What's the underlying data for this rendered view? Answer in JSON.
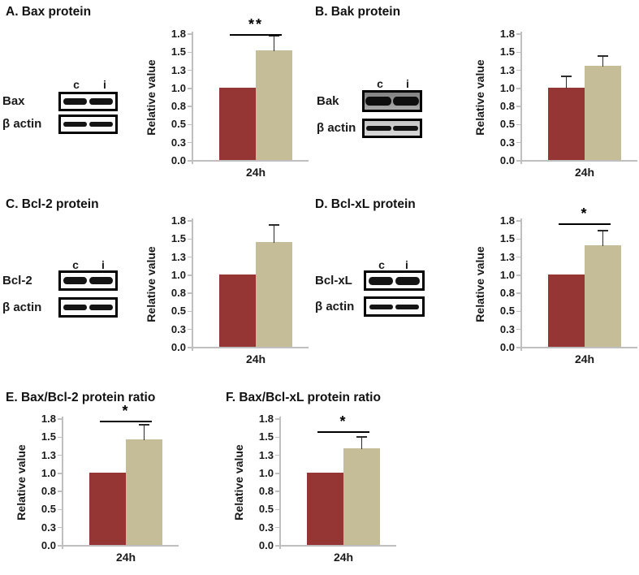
{
  "colors": {
    "control_bar": "#963634",
    "treated_bar": "#C4BD97",
    "axis_line": "#BFBFBF",
    "text": "#1A1A1A",
    "error_bar": "#2B2B2B",
    "significance": "#000000"
  },
  "panels": [
    {
      "id": "A",
      "title": "A. Bax protein",
      "blot": {
        "lane_labels": [
          "c",
          "i"
        ],
        "rows": [
          {
            "label": "Bax"
          },
          {
            "label": "β actin"
          }
        ]
      }
    },
    {
      "id": "B",
      "title": "B. Bak protein",
      "blot": {
        "lane_labels": [
          "c",
          "i"
        ],
        "rows": [
          {
            "label": "Bak"
          },
          {
            "label": "β actin"
          }
        ]
      }
    },
    {
      "id": "C",
      "title": "C. Bcl-2 protein",
      "blot": {
        "lane_labels": [
          "c",
          "i"
        ],
        "rows": [
          {
            "label": "Bcl-2"
          },
          {
            "label": "β actin"
          }
        ]
      }
    },
    {
      "id": "D",
      "title": "D. Bcl-xL protein",
      "blot": {
        "lane_labels": [
          "c",
          "i"
        ],
        "rows": [
          {
            "label": "Bcl-xL"
          },
          {
            "label": "β actin"
          }
        ]
      }
    },
    {
      "id": "E",
      "title": "E. Bax/Bcl-2 protein ratio",
      "blot": null
    },
    {
      "id": "F",
      "title": "F. Bax/Bcl-xL protein ratio",
      "blot": null
    }
  ],
  "chart_data": [
    {
      "id": "A",
      "type": "bar",
      "title": "A. Bax protein",
      "categories": [
        "24h"
      ],
      "ylabel": "Relative value",
      "ylim": [
        0,
        1.75
      ],
      "yticks": [
        "1.8",
        "1.5",
        "1.3",
        "1.0",
        "0.8",
        "0.5",
        "0.3",
        "0.0"
      ],
      "grid": false,
      "legend": "none",
      "series": [
        {
          "name": "c",
          "color": "#963634",
          "values": [
            1.0
          ],
          "error_plus": [
            0
          ]
        },
        {
          "name": "i",
          "color": "#C4BD97",
          "values": [
            1.52
          ],
          "error_plus": [
            0.21
          ]
        }
      ],
      "significance": {
        "label": "**",
        "line_y": 1.75
      }
    },
    {
      "id": "B",
      "type": "bar",
      "title": "B. Bak protein",
      "categories": [
        "24h"
      ],
      "ylabel": "Relative value",
      "ylim": [
        0,
        1.75
      ],
      "yticks": [
        "1.8",
        "1.5",
        "1.3",
        "1.0",
        "0.8",
        "0.5",
        "0.3",
        "0.0"
      ],
      "grid": false,
      "legend": "none",
      "series": [
        {
          "name": "c",
          "color": "#963634",
          "values": [
            1.0
          ],
          "error_plus": [
            0.17
          ]
        },
        {
          "name": "i",
          "color": "#C4BD97",
          "values": [
            1.3
          ],
          "error_plus": [
            0.15
          ]
        }
      ],
      "significance": null
    },
    {
      "id": "C",
      "type": "bar",
      "title": "C. Bcl-2 protein",
      "categories": [
        "24h"
      ],
      "ylabel": "Relative value",
      "ylim": [
        0,
        1.75
      ],
      "yticks": [
        "1.8",
        "1.5",
        "1.3",
        "1.0",
        "0.8",
        "0.5",
        "0.3",
        "0.0"
      ],
      "grid": false,
      "legend": "none",
      "series": [
        {
          "name": "c",
          "color": "#963634",
          "values": [
            1.0
          ],
          "error_plus": [
            0
          ]
        },
        {
          "name": "i",
          "color": "#C4BD97",
          "values": [
            1.45
          ],
          "error_plus": [
            0.24
          ]
        }
      ],
      "significance": null
    },
    {
      "id": "D",
      "type": "bar",
      "title": "D. Bcl-xL protein",
      "categories": [
        "24h"
      ],
      "ylabel": "Relative value",
      "ylim": [
        0,
        1.75
      ],
      "yticks": [
        "1.8",
        "1.5",
        "1.3",
        "1.0",
        "0.8",
        "0.5",
        "0.3",
        "0.0"
      ],
      "grid": false,
      "legend": "none",
      "series": [
        {
          "name": "c",
          "color": "#963634",
          "values": [
            1.0
          ],
          "error_plus": [
            0
          ]
        },
        {
          "name": "i",
          "color": "#C4BD97",
          "values": [
            1.4
          ],
          "error_plus": [
            0.22
          ]
        }
      ],
      "significance": {
        "label": "*",
        "line_y": 1.72
      }
    },
    {
      "id": "E",
      "type": "bar",
      "title": "E. Bax/Bcl-2 protein ratio",
      "categories": [
        "24h"
      ],
      "ylabel": "Relative value",
      "ylim": [
        0,
        1.75
      ],
      "yticks": [
        "1.8",
        "1.5",
        "1.3",
        "1.0",
        "0.8",
        "0.5",
        "0.3",
        "0.0"
      ],
      "grid": false,
      "legend": "none",
      "series": [
        {
          "name": "c",
          "color": "#963634",
          "values": [
            1.0
          ],
          "error_plus": [
            0
          ]
        },
        {
          "name": "i",
          "color": "#C4BD97",
          "values": [
            1.46
          ],
          "error_plus": [
            0.21
          ]
        }
      ],
      "significance": {
        "label": "*",
        "line_y": 1.73
      }
    },
    {
      "id": "F",
      "type": "bar",
      "title": "F. Bax/Bcl-xL protein ratio",
      "categories": [
        "24h"
      ],
      "ylabel": "Relative value",
      "ylim": [
        0,
        1.75
      ],
      "yticks": [
        "1.8",
        "1.5",
        "1.3",
        "1.0",
        "0.8",
        "0.5",
        "0.3",
        "0.0"
      ],
      "grid": false,
      "legend": "none",
      "series": [
        {
          "name": "c",
          "color": "#963634",
          "values": [
            1.0
          ],
          "error_plus": [
            0
          ]
        },
        {
          "name": "i",
          "color": "#C4BD97",
          "values": [
            1.34
          ],
          "error_plus": [
            0.16
          ]
        }
      ],
      "significance": {
        "label": "*",
        "line_y": 1.58
      }
    }
  ]
}
